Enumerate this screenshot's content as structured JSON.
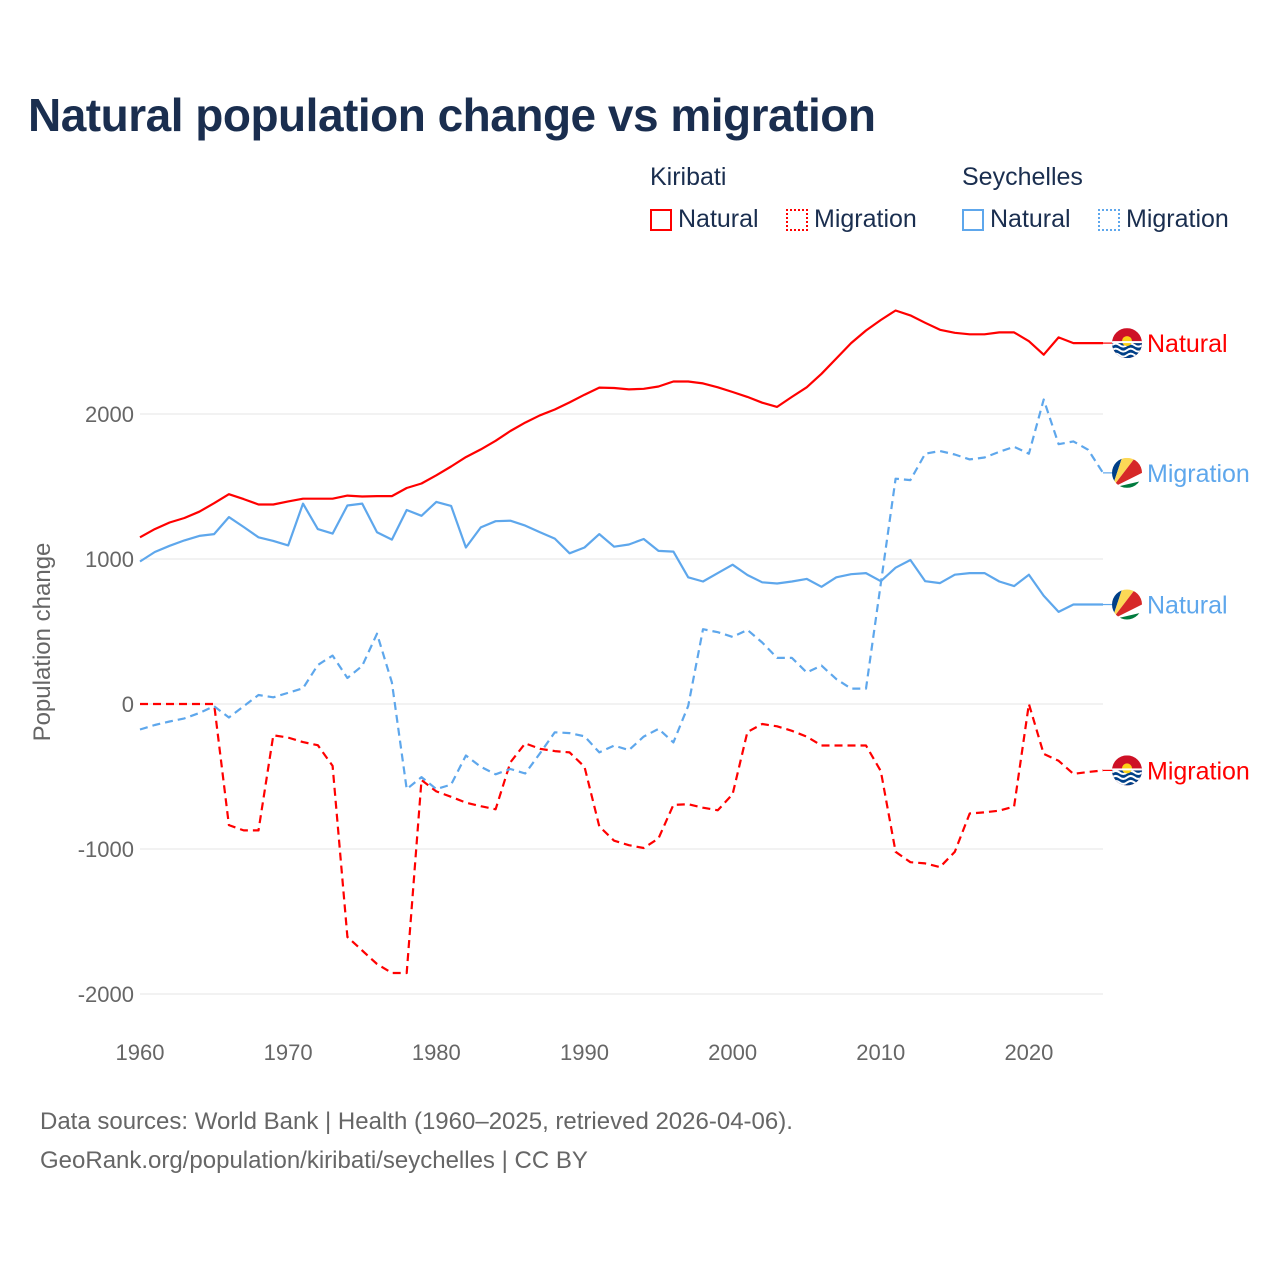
{
  "chart_data": {
    "type": "line",
    "title": "Natural population change vs migration",
    "xlabel": "",
    "ylabel": "Population change",
    "xlim": [
      1960,
      2025
    ],
    "ylim": [
      -2000,
      2800
    ],
    "grid": true,
    "x_ticks": [
      1960,
      1970,
      1980,
      1990,
      2000,
      2010,
      2020
    ],
    "y_ticks": [
      -2000,
      -1000,
      0,
      1000,
      2000
    ],
    "x_tick_labels": [
      "1960",
      "1970",
      "1980",
      "1990",
      "2000",
      "2010",
      "2020"
    ],
    "y_tick_labels": [
      "-2000",
      "-1000",
      "0",
      "1000",
      "2000"
    ],
    "legend": {
      "placement": "top-right",
      "groups": [
        {
          "country": "Kiribati",
          "items": [
            "Natural",
            "Migration"
          ]
        },
        {
          "country": "Seychelles",
          "items": [
            "Natural",
            "Migration"
          ]
        }
      ]
    },
    "x_start": 1960,
    "series": [
      {
        "name": "Kiribati Natural",
        "country": "Kiribati",
        "kind": "Natural",
        "label": "Natural",
        "color": "#ff0000",
        "dash": false,
        "flag": "kiribati-flag",
        "values": [
          1150,
          1206,
          1252,
          1283,
          1326,
          1385,
          1447,
          1413,
          1376,
          1376,
          1397,
          1416,
          1416,
          1416,
          1437,
          1431,
          1434,
          1434,
          1490,
          1521,
          1577,
          1638,
          1703,
          1756,
          1815,
          1883,
          1941,
          1991,
          2031,
          2080,
          2133,
          2182,
          2179,
          2170,
          2174,
          2190,
          2224,
          2224,
          2211,
          2184,
          2152,
          2118,
          2078,
          2049,
          2118,
          2184,
          2277,
          2383,
          2489,
          2576,
          2648,
          2714,
          2680,
          2629,
          2581,
          2560,
          2550,
          2550,
          2563,
          2563,
          2502,
          2409,
          2528,
          2489,
          2489,
          2489
        ]
      },
      {
        "name": "Kiribati Migration",
        "country": "Kiribati",
        "kind": "Migration",
        "label": "Migration",
        "color": "#ff0000",
        "dash": true,
        "flag": "kiribati-flag",
        "values": [
          0,
          0,
          0,
          0,
          0,
          0,
          -835,
          -872,
          -872,
          -216,
          -232,
          -263,
          -284,
          -427,
          -1607,
          -1700,
          -1793,
          -1855,
          -1855,
          -525,
          -603,
          -640,
          -680,
          -705,
          -726,
          -402,
          -272,
          -309,
          -325,
          -334,
          -433,
          -844,
          -943,
          -974,
          -993,
          -927,
          -696,
          -691,
          -715,
          -733,
          -622,
          -193,
          -138,
          -154,
          -185,
          -225,
          -286,
          -286,
          -286,
          -286,
          -463,
          -1019,
          -1091,
          -1099,
          -1125,
          -1019,
          -755,
          -747,
          -736,
          -707,
          0,
          -344,
          -392,
          -482,
          -469,
          -458
        ]
      },
      {
        "name": "Seychelles Natural",
        "country": "Seychelles",
        "kind": "Natural",
        "label": "Natural",
        "color": "#5ea7ec",
        "dash": false,
        "flag": "seychelles-flag",
        "values": [
          983,
          1048,
          1091,
          1128,
          1159,
          1172,
          1289,
          1221,
          1150,
          1125,
          1094,
          1382,
          1206,
          1175,
          1369,
          1382,
          1184,
          1134,
          1338,
          1298,
          1394,
          1366,
          1079,
          1218,
          1261,
          1264,
          1230,
          1184,
          1141,
          1039,
          1079,
          1172,
          1085,
          1100,
          1138,
          1056,
          1051,
          874,
          845,
          903,
          961,
          890,
          839,
          831,
          845,
          863,
          808,
          874,
          895,
          903,
          847,
          940,
          993,
          847,
          834,
          892,
          903,
          903,
          845,
          813,
          892,
          747,
          635,
          686,
          686,
          686
        ]
      },
      {
        "name": "Seychelles Migration",
        "country": "Seychelles",
        "kind": "Migration",
        "label": "Migration",
        "color": "#5ea7ec",
        "dash": true,
        "flag": "seychelles-flag",
        "values": [
          -176,
          -145,
          -121,
          -99,
          -62,
          -15,
          -93,
          -15,
          62,
          46,
          77,
          108,
          269,
          334,
          179,
          263,
          485,
          148,
          -587,
          -504,
          -587,
          -556,
          -355,
          -433,
          -485,
          -448,
          -479,
          -340,
          -195,
          -201,
          -223,
          -334,
          -287,
          -318,
          -225,
          -172,
          -265,
          -13,
          516,
          495,
          463,
          511,
          424,
          318,
          318,
          217,
          265,
          172,
          106,
          106,
          830,
          1554,
          1544,
          1726,
          1745,
          1721,
          1687,
          1700,
          1739,
          1774,
          1726,
          2100,
          1792,
          1811,
          1753,
          1594
        ]
      }
    ]
  },
  "footer": {
    "line1": "Data sources: World Bank | Health (1960–2025, retrieved 2026-04-06).",
    "line2": "GeoRank.org/population/kiribati/seychelles | CC BY"
  }
}
